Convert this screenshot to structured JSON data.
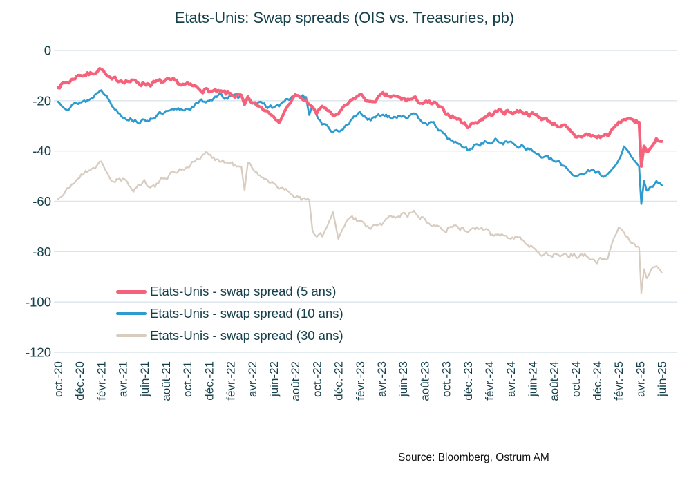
{
  "source": "Source: Bloomberg, Ostrum AM",
  "colors": {
    "accent_text": "#15404b",
    "gridline": "#d9e5ec",
    "background": "#ffffff",
    "source_text": "#0d0d0d"
  },
  "chart_data": {
    "type": "line",
    "title": "Etats-Unis: Swap spreads (OIS vs. Treasuries, pb)",
    "xlabel": "",
    "ylabel": "",
    "ylim": [
      -120,
      0
    ],
    "grid": "horizontal",
    "legend_position": "inside-bottom-left",
    "y_ticks": [
      0,
      -20,
      -40,
      -60,
      -80,
      -100,
      -120
    ],
    "x_unit": "months since Oct 2020",
    "x_tick_interval_months": 2,
    "x_tick_labels": [
      "oct.-20",
      "déc.-20",
      "févr.-21",
      "avr.-21",
      "juin-21",
      "août-21",
      "oct.-21",
      "déc.-21",
      "févr.-22",
      "avr.-22",
      "juin-22",
      "août-22",
      "oct.-22",
      "déc.-22",
      "févr.-23",
      "avr.-23",
      "juin-23",
      "août-23",
      "oct.-23",
      "déc.-23",
      "févr.-24",
      "avr.-24",
      "juin-24",
      "août-24",
      "oct.-24",
      "déc.-24",
      "févr.-25",
      "avr.-25",
      "juin-25"
    ],
    "x": [
      0,
      1,
      2,
      3,
      4,
      4.5,
      5,
      6,
      7,
      8,
      9,
      10,
      11,
      12,
      13,
      14,
      15,
      16,
      17,
      17.3,
      17.6,
      18,
      19,
      20,
      20.5,
      21,
      22,
      23,
      23.3,
      23.6,
      24,
      24.5,
      25,
      25.5,
      26,
      27,
      28,
      29,
      30,
      31,
      32,
      33,
      34,
      35,
      36,
      37,
      38,
      39,
      40,
      41,
      42,
      43,
      44,
      45,
      46,
      47,
      48,
      49,
      50,
      51,
      52,
      52.5,
      53,
      53.5,
      53.9,
      54.1,
      54.35,
      54.6,
      55,
      55.5,
      56
    ],
    "series": [
      {
        "name": "Etats-Unis - swap spread (5 ans)",
        "color": "#f4637b",
        "values": [
          -14,
          -12.5,
          -9.5,
          -9.5,
          -7,
          -10,
          -12,
          -11.5,
          -12.5,
          -13,
          -13,
          -12.5,
          -13,
          -14,
          -15,
          -16,
          -17,
          -17.5,
          -18.5,
          -22,
          -19,
          -21,
          -23,
          -25,
          -29,
          -24,
          -18,
          -20,
          -21,
          -23,
          -25,
          -22,
          -24,
          -26,
          -25,
          -21,
          -17.5,
          -21,
          -18,
          -18.5,
          -19.5,
          -19.5,
          -21,
          -21.5,
          -25,
          -27,
          -30,
          -28,
          -25.5,
          -24,
          -24.5,
          -24,
          -25.5,
          -27,
          -29,
          -30.5,
          -34.5,
          -33.5,
          -34.5,
          -33.5,
          -29,
          -27.5,
          -26.5,
          -29,
          -28.5,
          -46,
          -38,
          -40,
          -38.5,
          -35.5,
          -36.5
        ]
      },
      {
        "name": "Etats-Unis - swap spread (10 ans)",
        "color": "#2d9bcd",
        "values": [
          -20.5,
          -22.5,
          -20.5,
          -19.5,
          -15,
          -18,
          -22,
          -26,
          -27.5,
          -28.5,
          -26,
          -25,
          -24,
          -23,
          -21,
          -19.5,
          -18,
          -18.5,
          -19,
          -21,
          -18,
          -20,
          -22,
          -22.5,
          -22,
          -20.5,
          -18,
          -19,
          -26,
          -22,
          -26,
          -29,
          -30.5,
          -32.5,
          -33,
          -28.5,
          -24.5,
          -28,
          -25.5,
          -26,
          -25.5,
          -26.5,
          -28,
          -30,
          -34.5,
          -37,
          -39.5,
          -37,
          -36.5,
          -36,
          -37,
          -37.5,
          -40,
          -42.5,
          -44,
          -46,
          -50,
          -48,
          -48.5,
          -49.5,
          -44,
          -38.5,
          -40,
          -44,
          -46,
          -61,
          -52,
          -56,
          -54,
          -52.5,
          -54
        ]
      },
      {
        "name": "Etats-Unis - swap spread (30 ans)",
        "color": "#d8ccc0",
        "values": [
          -59,
          -55,
          -50,
          -47,
          -45,
          -48,
          -52,
          -52,
          -55,
          -52,
          -54,
          -50,
          -48,
          -46,
          -43,
          -41,
          -44,
          -45,
          -47,
          -56,
          -45,
          -46,
          -51,
          -52,
          -54,
          -56,
          -57.5,
          -59.5,
          -60,
          -72,
          -74,
          -74,
          -70,
          -64.5,
          -75,
          -66.5,
          -68,
          -71,
          -69,
          -66,
          -65,
          -65,
          -67,
          -68.5,
          -71,
          -70,
          -72,
          -70.5,
          -73,
          -74,
          -73,
          -75,
          -78.5,
          -80.5,
          -81,
          -81.5,
          -81,
          -81.5,
          -83.5,
          -81.5,
          -70,
          -73,
          -75,
          -77,
          -79,
          -97,
          -87,
          -91,
          -87,
          -86,
          -88
        ]
      }
    ]
  }
}
